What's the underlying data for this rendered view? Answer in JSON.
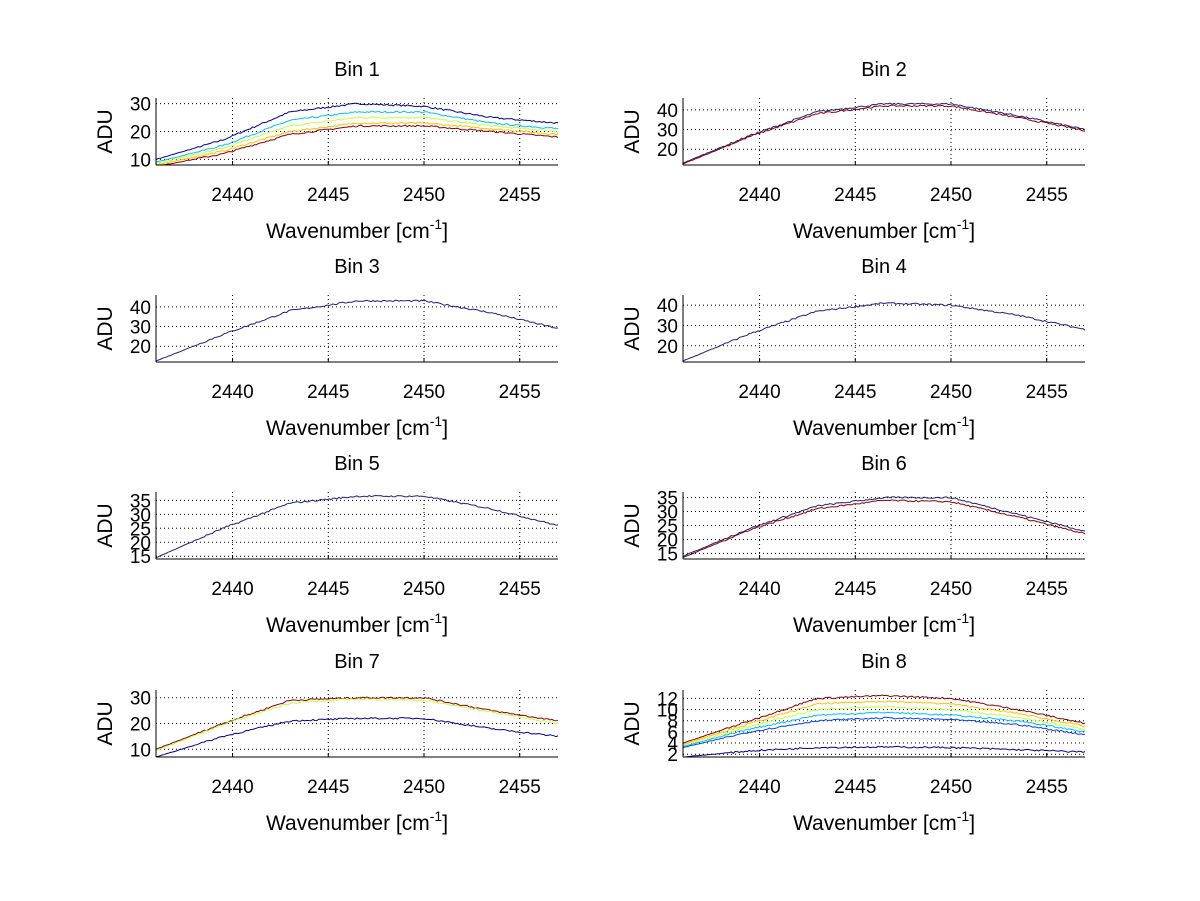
{
  "chart_data": [
    {
      "type": "line",
      "title": "Bin 1",
      "xlabel": "Wavenumber [cm",
      "xlabel_sup": "-1",
      "xlabel_end": "]",
      "ylabel": "ADU",
      "xlim": [
        2436,
        2457
      ],
      "ylim": [
        8,
        32
      ],
      "xticks": [
        2440,
        2445,
        2450,
        2455
      ],
      "yticks": [
        10,
        20,
        30
      ],
      "grid": true,
      "series": [
        {
          "name": "s1",
          "shape": [
            10,
            17,
            27,
            30,
            29,
            25,
            23
          ]
        },
        {
          "name": "s2",
          "shape": [
            9,
            15,
            24,
            27,
            27,
            23,
            21
          ]
        },
        {
          "name": "s3",
          "shape": [
            8.5,
            14,
            22,
            25,
            25,
            22,
            20
          ]
        },
        {
          "name": "s4",
          "shape": [
            8,
            13,
            20,
            23,
            23,
            21,
            19
          ]
        },
        {
          "name": "s5",
          "shape": [
            7.5,
            12,
            19,
            22,
            22,
            20,
            18
          ]
        }
      ],
      "spread_colors": true
    },
    {
      "type": "line",
      "title": "Bin 2",
      "xlabel": "Wavenumber [cm",
      "xlabel_sup": "-1",
      "xlabel_end": "]",
      "ylabel": "ADU",
      "xlim": [
        2436,
        2457
      ],
      "ylim": [
        12,
        46
      ],
      "xticks": [
        2440,
        2445,
        2450,
        2455
      ],
      "yticks": [
        20,
        30,
        40
      ],
      "grid": true,
      "series": [
        {
          "name": "s1",
          "shape": [
            13,
            27,
            39,
            43,
            43,
            37,
            30
          ]
        },
        {
          "name": "s2",
          "shape": [
            12.5,
            26.5,
            38,
            42,
            42,
            36,
            29.5
          ]
        }
      ]
    },
    {
      "type": "line",
      "title": "Bin 3",
      "xlabel": "Wavenumber [cm",
      "xlabel_sup": "-1",
      "xlabel_end": "]",
      "ylabel": "ADU",
      "xlim": [
        2436,
        2457
      ],
      "ylim": [
        12,
        46
      ],
      "xticks": [
        2440,
        2445,
        2450,
        2455
      ],
      "yticks": [
        20,
        30,
        40
      ],
      "grid": true,
      "series": [
        {
          "name": "s1",
          "shape": [
            12.5,
            26,
            38,
            43,
            43,
            37,
            29
          ]
        }
      ]
    },
    {
      "type": "line",
      "title": "Bin 4",
      "xlabel": "Wavenumber [cm",
      "xlabel_sup": "-1",
      "xlabel_end": "]",
      "ylabel": "ADU",
      "xlim": [
        2436,
        2457
      ],
      "ylim": [
        12,
        45
      ],
      "xticks": [
        2440,
        2445,
        2450,
        2455
      ],
      "yticks": [
        20,
        30,
        40
      ],
      "grid": true,
      "series": [
        {
          "name": "s1",
          "shape": [
            12.5,
            26,
            37,
            41,
            40,
            35,
            28
          ]
        }
      ]
    },
    {
      "type": "line",
      "title": "Bin 5",
      "xlabel": "Wavenumber [cm",
      "xlabel_sup": "-1",
      "xlabel_end": "]",
      "ylabel": "ADU",
      "xlim": [
        2436,
        2457
      ],
      "ylim": [
        14,
        38
      ],
      "xticks": [
        2440,
        2445,
        2450,
        2455
      ],
      "yticks": [
        15,
        20,
        25,
        30,
        35
      ],
      "grid": true,
      "series": [
        {
          "name": "s1",
          "shape": [
            14.5,
            25,
            34,
            36.5,
            36.5,
            32,
            26
          ]
        }
      ]
    },
    {
      "type": "line",
      "title": "Bin 6",
      "xlabel": "Wavenumber [cm",
      "xlabel_sup": "-1",
      "xlabel_end": "]",
      "ylabel": "ADU",
      "xlim": [
        2436,
        2457
      ],
      "ylim": [
        13,
        37
      ],
      "xticks": [
        2440,
        2445,
        2450,
        2455
      ],
      "yticks": [
        15,
        20,
        25,
        30,
        35
      ],
      "grid": true,
      "series": [
        {
          "name": "s1",
          "shape": [
            14,
            24,
            32,
            35,
            35,
            29,
            23
          ]
        },
        {
          "name": "s2",
          "shape": [
            13.5,
            23.5,
            31,
            34,
            33.5,
            28,
            22
          ]
        }
      ]
    },
    {
      "type": "line",
      "title": "Bin 7",
      "xlabel": "Wavenumber [cm",
      "xlabel_sup": "-1",
      "xlabel_end": "]",
      "ylabel": "ADU",
      "xlim": [
        2436,
        2457
      ],
      "ylim": [
        7,
        33
      ],
      "xticks": [
        2440,
        2445,
        2450,
        2455
      ],
      "yticks": [
        10,
        20,
        30
      ],
      "grid": true,
      "series": [
        {
          "name": "s1",
          "shape": [
            10,
            20,
            29,
            30,
            30,
            25,
            21
          ]
        },
        {
          "name": "s2",
          "shape": [
            9.5,
            19.5,
            28,
            29.5,
            29,
            24.5,
            20
          ]
        },
        {
          "name": "s3",
          "shape": [
            7,
            15,
            21,
            22,
            22,
            18,
            15
          ]
        }
      ],
      "spread_colors": true
    },
    {
      "type": "line",
      "title": "Bin 8",
      "xlabel": "Wavenumber [cm",
      "xlabel_sup": "-1",
      "xlabel_end": "]",
      "ylabel": "ADU",
      "xlim": [
        2436,
        2457
      ],
      "ylim": [
        1.5,
        13.5
      ],
      "xticks": [
        2440,
        2445,
        2450,
        2455
      ],
      "yticks": [
        2,
        4,
        6,
        8,
        10,
        12
      ],
      "grid": true,
      "series": [
        {
          "name": "s1",
          "shape": [
            4,
            8,
            12,
            12.5,
            12,
            10,
            7.5
          ]
        },
        {
          "name": "s2",
          "shape": [
            3.8,
            7.5,
            11,
            11.5,
            11,
            9.3,
            7
          ]
        },
        {
          "name": "s3",
          "shape": [
            3.6,
            7,
            10,
            10.5,
            10,
            8.6,
            6.5
          ]
        },
        {
          "name": "s4",
          "shape": [
            3.4,
            6.5,
            9,
            9.5,
            9,
            8,
            6
          ]
        },
        {
          "name": "s5",
          "shape": [
            3.2,
            6,
            8,
            8.5,
            8.2,
            7.3,
            5.5
          ]
        },
        {
          "name": "s6",
          "shape": [
            1.5,
            2.6,
            3.2,
            3.3,
            3.2,
            2.8,
            2.4
          ]
        }
      ],
      "spread_colors": true
    }
  ],
  "colors": {
    "jet": [
      "#00008f",
      "#0040ff",
      "#00c0ff",
      "#40ffbf",
      "#c0ff40",
      "#ffc000",
      "#ff4000",
      "#8f0000"
    ]
  }
}
